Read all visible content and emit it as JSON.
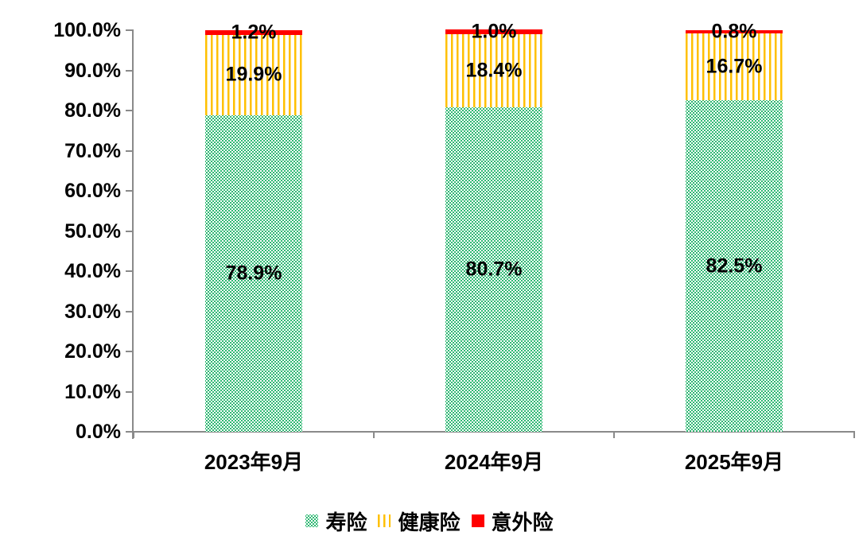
{
  "chart_data": {
    "type": "bar",
    "variant": "stacked-100-percent-column",
    "title": "",
    "categories": [
      "2023年9月",
      "2024年9月",
      "2025年9月"
    ],
    "series": [
      {
        "key": "life",
        "name": "寿险",
        "color": "#2fb873",
        "pattern": "checker",
        "values": [
          78.9,
          80.7,
          82.5
        ]
      },
      {
        "key": "health",
        "name": "健康险",
        "color": "#ffc000",
        "pattern": "stripes",
        "values": [
          19.9,
          18.4,
          16.7
        ]
      },
      {
        "key": "accident",
        "name": "意外险",
        "color": "#ff0000",
        "pattern": "solid",
        "values": [
          1.2,
          1.0,
          0.8
        ]
      }
    ],
    "data_labels": {
      "life": [
        "78.9%",
        "80.7%",
        "82.5%"
      ],
      "health": [
        "19.9%",
        "18.4%",
        "16.7%"
      ],
      "accident": [
        "1.2%",
        "1.0%",
        "0.8%"
      ]
    },
    "ylabel": "",
    "xlabel": "",
    "ylim": [
      0,
      100
    ],
    "ytick_step": 10,
    "yticks": [
      "0.0%",
      "10.0%",
      "20.0%",
      "30.0%",
      "40.0%",
      "50.0%",
      "60.0%",
      "70.0%",
      "80.0%",
      "90.0%",
      "100.0%"
    ],
    "grid": false,
    "legend_position": "bottom",
    "axis_color": "#8a8a8a",
    "text_color": "#000000",
    "background_color": "#ffffff"
  }
}
